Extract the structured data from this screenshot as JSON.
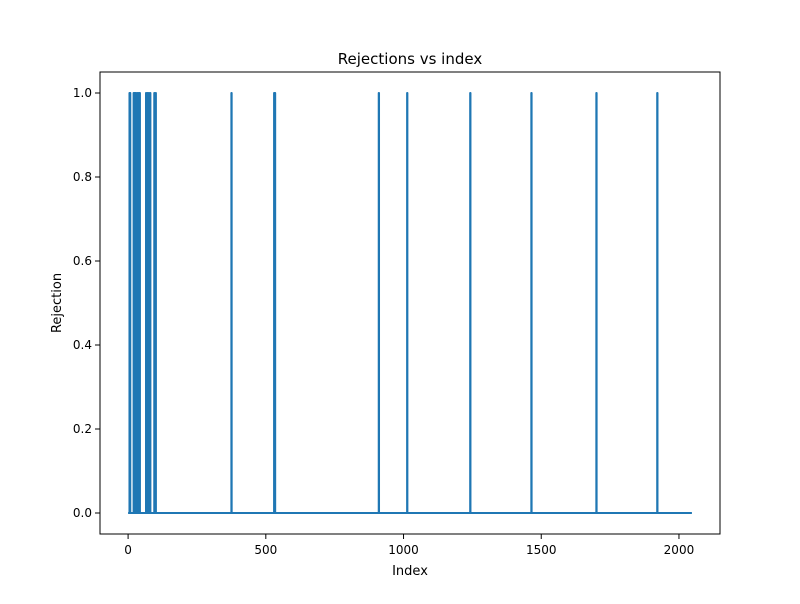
{
  "chart_data": {
    "type": "line",
    "title": "Rejections vs index",
    "xlabel": "Index",
    "ylabel": "Rejection",
    "xlim": [
      -102,
      2149
    ],
    "ylim": [
      -0.05,
      1.05
    ],
    "x_ticks": [
      0,
      500,
      1000,
      1500,
      2000
    ],
    "x_tick_labels": [
      "0",
      "500",
      "1000",
      "1500",
      "2000"
    ],
    "y_ticks": [
      0.0,
      0.2,
      0.4,
      0.6,
      0.8,
      1.0
    ],
    "y_tick_labels": [
      "0.0",
      "0.2",
      "0.4",
      "0.6",
      "0.8",
      "1.0"
    ],
    "x_range": [
      0,
      2047
    ],
    "baseline_value": 0,
    "spike_value": 1,
    "spike_indices": [
      5,
      7,
      20,
      24,
      28,
      33,
      38,
      42,
      65,
      70,
      75,
      80,
      95,
      100,
      375,
      530,
      533,
      910,
      1013,
      1242,
      1464,
      1700,
      1921
    ],
    "grid": false,
    "legend": "none",
    "line_color": "#1f77b4"
  }
}
